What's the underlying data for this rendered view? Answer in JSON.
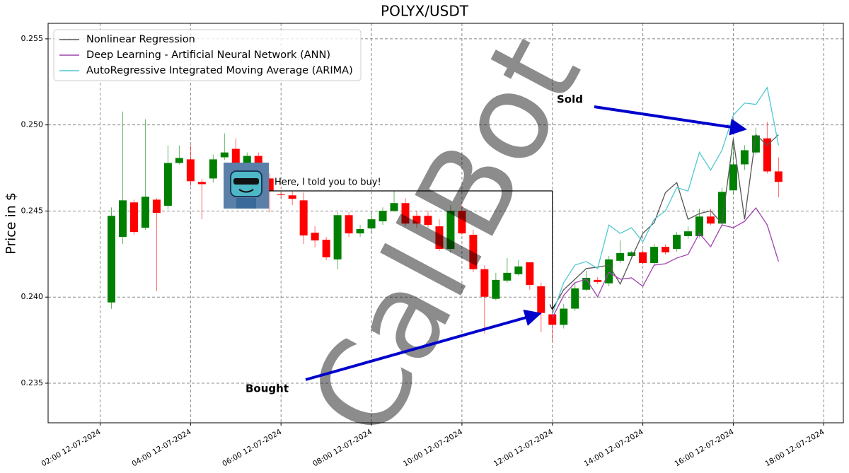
{
  "chart_data": {
    "type": "candlestick",
    "title": "POLYX/USDT",
    "ylabel": "Price in $",
    "x": [
      "02:15 12-07-2024",
      "02:30 12-07-2024",
      "02:45 12-07-2024",
      "03:00 12-07-2024",
      "03:15 12-07-2024",
      "03:30 12-07-2024",
      "03:45 12-07-2024",
      "04:00 12-07-2024",
      "04:15 12-07-2024",
      "04:30 12-07-2024",
      "04:45 12-07-2024",
      "05:00 12-07-2024",
      "05:15 12-07-2024",
      "05:30 12-07-2024",
      "05:45 12-07-2024",
      "06:00 12-07-2024",
      "06:15 12-07-2024",
      "06:30 12-07-2024",
      "06:45 12-07-2024",
      "07:00 12-07-2024",
      "07:15 12-07-2024",
      "07:30 12-07-2024",
      "07:45 12-07-2024",
      "08:00 12-07-2024",
      "08:15 12-07-2024",
      "08:30 12-07-2024",
      "08:45 12-07-2024",
      "09:00 12-07-2024",
      "09:15 12-07-2024",
      "09:30 12-07-2024",
      "09:45 12-07-2024",
      "10:00 12-07-2024",
      "10:15 12-07-2024",
      "10:30 12-07-2024",
      "10:45 12-07-2024",
      "11:00 12-07-2024",
      "11:15 12-07-2024",
      "11:30 12-07-2024",
      "11:45 12-07-2024",
      "12:00 12-07-2024",
      "12:15 12-07-2024",
      "12:30 12-07-2024",
      "12:45 12-07-2024",
      "13:00 12-07-2024",
      "13:15 12-07-2024",
      "13:30 12-07-2024",
      "13:45 12-07-2024",
      "14:00 12-07-2024",
      "14:15 12-07-2024",
      "14:30 12-07-2024",
      "14:45 12-07-2024",
      "15:00 12-07-2024",
      "15:15 12-07-2024",
      "15:30 12-07-2024",
      "15:45 12-07-2024",
      "16:00 12-07-2024",
      "16:15 12-07-2024",
      "16:30 12-07-2024",
      "16:45 12-07-2024",
      "17:00 12-07-2024"
    ],
    "open": [
      0.23969,
      0.2435,
      0.2455,
      0.24403,
      0.24566,
      0.2453,
      0.24779,
      0.248,
      0.24669,
      0.24689,
      0.24812,
      0.24861,
      0.2476,
      0.2482,
      0.24689,
      0.24596,
      0.24591,
      0.24562,
      0.24374,
      0.24333,
      0.24219,
      0.24476,
      0.2437,
      0.24399,
      0.2444,
      0.24501,
      0.24546,
      0.24472,
      0.24472,
      0.24411,
      0.2428,
      0.24501,
      0.24362,
      0.24162,
      0.2399,
      0.24096,
      0.24133,
      0.24202,
      0.24063,
      0.239,
      0.23839,
      0.23933,
      0.24043,
      0.241,
      0.2408,
      0.24211,
      0.24239,
      0.2426,
      0.24198,
      0.24292,
      0.2428,
      0.24354,
      0.24354,
      0.24468,
      0.24427,
      0.2462,
      0.24771,
      0.2484,
      0.24922,
      0.2473
    ],
    "high": [
      0.24521,
      0.25078,
      0.24566,
      0.25033,
      0.24575,
      0.24881,
      0.24881,
      0.24881,
      0.24685,
      0.24828,
      0.24951,
      0.24922,
      0.2484,
      0.2484,
      0.24718,
      0.2461,
      0.24616,
      0.24607,
      0.24411,
      0.2435,
      0.24493,
      0.24493,
      0.24419,
      0.24493,
      0.24521,
      0.24616,
      0.24575,
      0.24501,
      0.24501,
      0.24452,
      0.24534,
      0.24534,
      0.24391,
      0.24186,
      0.24141,
      0.24227,
      0.24214,
      0.24202,
      0.24084,
      0.23929,
      0.23961,
      0.24084,
      0.24153,
      0.24117,
      0.24239,
      0.24329,
      0.24268,
      0.24276,
      0.24309,
      0.24305,
      0.24378,
      0.24411,
      0.24513,
      0.24513,
      0.24636,
      0.24922,
      0.24882,
      0.24984,
      0.25017,
      0.24812
    ],
    "low": [
      0.23932,
      0.24309,
      0.24362,
      0.24391,
      0.24035,
      0.24509,
      0.24771,
      0.24644,
      0.24452,
      0.24665,
      0.24796,
      0.24697,
      0.2472,
      0.2465,
      0.24493,
      0.24575,
      0.24534,
      0.24309,
      0.24289,
      0.24215,
      0.24162,
      0.2435,
      0.2435,
      0.2437,
      0.24419,
      0.24493,
      0.24411,
      0.24403,
      0.24403,
      0.24268,
      0.24256,
      0.24362,
      0.24145,
      0.23789,
      0.23981,
      0.24084,
      0.24125,
      0.24043,
      0.23797,
      0.23744,
      0.23818,
      0.2392,
      0.24035,
      0.24076,
      0.24063,
      0.24198,
      0.24231,
      0.2419,
      0.24186,
      0.24248,
      0.24264,
      0.24337,
      0.24346,
      0.24419,
      0.24411,
      0.24595,
      0.24738,
      0.24828,
      0.24718,
      0.24579
    ],
    "close": [
      0.24472,
      0.24562,
      0.24378,
      0.24583,
      0.24489,
      0.24779,
      0.24808,
      0.24673,
      0.24656,
      0.248,
      0.2484,
      0.24779,
      0.2482,
      0.2472,
      0.24616,
      0.24592,
      0.24571,
      0.24358,
      0.24329,
      0.24231,
      0.24476,
      0.2437,
      0.24395,
      0.24452,
      0.24501,
      0.24546,
      0.24427,
      0.24427,
      0.24419,
      0.2428,
      0.24501,
      0.2437,
      0.24162,
      0.24002,
      0.241,
      0.24141,
      0.24178,
      0.24071,
      0.23908,
      0.23839,
      0.23933,
      0.24051,
      0.24112,
      0.24088,
      0.24219,
      0.24256,
      0.2426,
      0.24198,
      0.24292,
      0.2426,
      0.24362,
      0.24382,
      0.24468,
      0.24427,
      0.24611,
      0.24771,
      0.24853,
      0.24939,
      0.2473,
      0.24669
    ],
    "up_color": "#008000",
    "down_color": "#ff0000",
    "series": [
      {
        "name": "Nonlinear Regression",
        "color": "#555555",
        "x": [
          "12:00 12-07-2024",
          "12:15 12-07-2024",
          "12:30 12-07-2024",
          "12:45 12-07-2024",
          "13:00 12-07-2024",
          "13:15 12-07-2024",
          "13:30 12-07-2024",
          "13:45 12-07-2024",
          "14:00 12-07-2024",
          "14:15 12-07-2024",
          "14:30 12-07-2024",
          "14:45 12-07-2024",
          "15:00 12-07-2024",
          "15:15 12-07-2024",
          "15:30 12-07-2024",
          "15:45 12-07-2024",
          "16:00 12-07-2024",
          "16:15 12-07-2024",
          "16:30 12-07-2024",
          "16:45 12-07-2024",
          "17:00 12-07-2024"
        ],
        "values": [
          0.23929,
          0.24043,
          0.24104,
          0.24166,
          0.24174,
          0.24186,
          0.24076,
          0.24227,
          0.2437,
          0.24432,
          0.24607,
          0.24665,
          0.24452,
          0.24485,
          0.24501,
          0.24428,
          0.24918,
          0.24452,
          0.24943,
          0.24882,
          0.24943
        ]
      },
      {
        "name": "Deep Learning - Artificial Neural Network (ANN)",
        "color": "#a040b0",
        "x": [
          "12:00 12-07-2024",
          "12:15 12-07-2024",
          "12:30 12-07-2024",
          "12:45 12-07-2024",
          "13:00 12-07-2024",
          "13:15 12-07-2024",
          "13:30 12-07-2024",
          "13:45 12-07-2024",
          "14:00 12-07-2024",
          "14:15 12-07-2024",
          "14:30 12-07-2024",
          "14:45 12-07-2024",
          "15:00 12-07-2024",
          "15:15 12-07-2024",
          "15:30 12-07-2024",
          "15:45 12-07-2024",
          "16:00 12-07-2024",
          "16:15 12-07-2024",
          "16:30 12-07-2024",
          "16:45 12-07-2024",
          "17:00 12-07-2024"
        ],
        "values": [
          0.2388,
          0.2401,
          0.24084,
          0.24104,
          0.24002,
          0.24145,
          0.24104,
          0.24112,
          0.24063,
          0.24186,
          0.24194,
          0.24227,
          0.24248,
          0.2437,
          0.24293,
          0.24419,
          0.24403,
          0.2444,
          0.24518,
          0.24419,
          0.24207
        ]
      },
      {
        "name": "AutoRegressive Integrated Moving Average (ARIMA)",
        "color": "#50c8d0",
        "x": [
          "12:00 12-07-2024",
          "12:15 12-07-2024",
          "12:30 12-07-2024",
          "12:45 12-07-2024",
          "13:00 12-07-2024",
          "13:15 12-07-2024",
          "13:30 12-07-2024",
          "13:45 12-07-2024",
          "14:00 12-07-2024",
          "14:15 12-07-2024",
          "14:30 12-07-2024",
          "14:45 12-07-2024",
          "15:00 12-07-2024",
          "15:15 12-07-2024",
          "15:30 12-07-2024",
          "15:45 12-07-2024",
          "16:00 12-07-2024",
          "16:15 12-07-2024",
          "16:30 12-07-2024",
          "16:45 12-07-2024",
          "17:00 12-07-2024"
        ],
        "values": [
          0.239,
          0.24084,
          0.24186,
          0.24207,
          0.24166,
          0.24419,
          0.2437,
          0.24403,
          0.24321,
          0.24452,
          0.24501,
          0.24636,
          0.24616,
          0.24841,
          0.24738,
          0.24853,
          0.25057,
          0.25127,
          0.25119,
          0.25217,
          0.24882
        ]
      }
    ],
    "xlim": [
      "00:51 12-07-2024",
      "18:26 12-07-2024"
    ],
    "xticks": [
      "02:00 12-07-2024",
      "04:00 12-07-2024",
      "06:00 12-07-2024",
      "08:00 12-07-2024",
      "10:00 12-07-2024",
      "12:00 12-07-2024",
      "14:00 12-07-2024",
      "16:00 12-07-2024",
      "18:00 12-07-2024"
    ],
    "ylim": [
      0.2327,
      0.2559
    ],
    "yticks": [
      0.235,
      {
        "value": 0.24,
        "label": "0.240"
      },
      0.245,
      {
        "value": 0.25,
        "label": "0.250"
      },
      0.255
    ],
    "grid": true,
    "legend": "upper left",
    "annotations": [
      "Here, I told you to buy!",
      "Bought",
      "Sold"
    ],
    "watermark": "CallBot"
  }
}
